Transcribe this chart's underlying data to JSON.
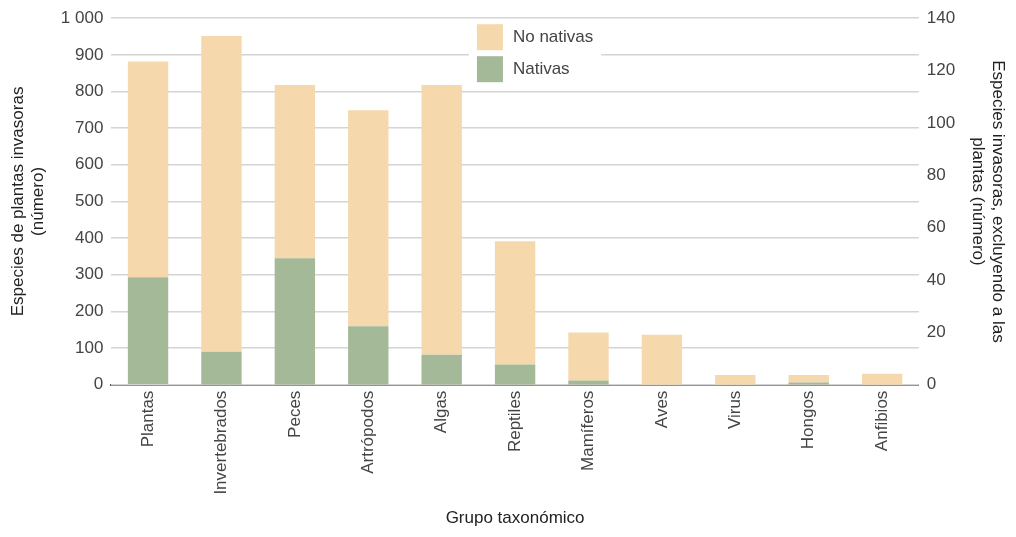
{
  "chart_data": {
    "type": "bar",
    "stacked": true,
    "xlabel": "Grupo taxonómico",
    "ylabel": "Especies de plantas invasoras (número)",
    "y2label": "Especies invasoras, excluyendo a las plantas (número)",
    "categories": [
      "Plantas",
      "Invertebrados",
      "Peces",
      "Artrópodos",
      "Algas",
      "Reptiles",
      "Mamíferos",
      "Aves",
      "Virus",
      "Hongos",
      "Anfibios"
    ],
    "series": [
      {
        "name": "Nativas",
        "color": "#a4b997",
        "values": [
          293,
          null,
          null,
          null,
          null,
          null,
          null,
          null,
          null,
          null,
          null
        ]
      },
      {
        "name": "No nativas",
        "color": "#f5d8ab",
        "values": [
          589,
          null,
          null,
          null,
          null,
          null,
          null,
          null,
          null,
          null,
          null
        ]
      },
      {
        "axis": "y2",
        "color": "#a4b997",
        "values": [
          null,
          12.6,
          48.3,
          22.3,
          11.4,
          7.7,
          1.6,
          null,
          0,
          0.8,
          null
        ]
      },
      {
        "axis": "y2",
        "color": "#f5d8ab",
        "values": [
          null,
          120.6,
          66.2,
          82.5,
          103.1,
          47.1,
          18.3,
          19.1,
          3.7,
          2.9,
          4.2
        ]
      }
    ],
    "ylim": [
      0,
      1000
    ],
    "yticks": [
      0,
      100,
      200,
      300,
      400,
      500,
      600,
      700,
      800,
      900,
      {
        "value": 1000,
        "label": "1 000"
      }
    ],
    "y2lim": [
      0,
      140
    ],
    "y2ticks": [
      0,
      20,
      40,
      60,
      80,
      100,
      120,
      140
    ],
    "grid": "y",
    "legend": "top"
  }
}
